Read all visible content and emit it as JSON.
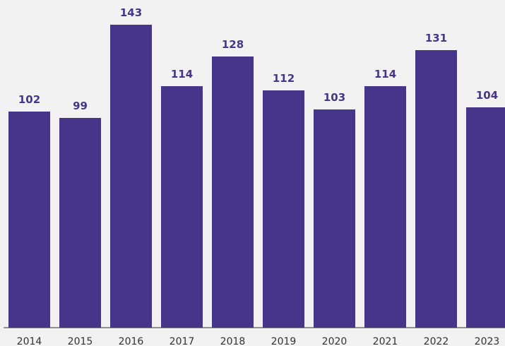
{
  "colors": {
    "background": "#f2f2f2",
    "bar": "#46368a",
    "label": "#46368a",
    "axis": "#333333",
    "tick_text": "#333333"
  },
  "chart_data": {
    "type": "bar",
    "categories": [
      "2014",
      "2015",
      "2016",
      "2017",
      "2018",
      "2019",
      "2020",
      "2021",
      "2022",
      "2023"
    ],
    "values": [
      102,
      99,
      143,
      114,
      128,
      112,
      103,
      114,
      131,
      104
    ],
    "title": "",
    "xlabel": "",
    "ylabel": "",
    "ylim": [
      0,
      147
    ],
    "grid": false,
    "data_labels": true,
    "legend": "none"
  }
}
